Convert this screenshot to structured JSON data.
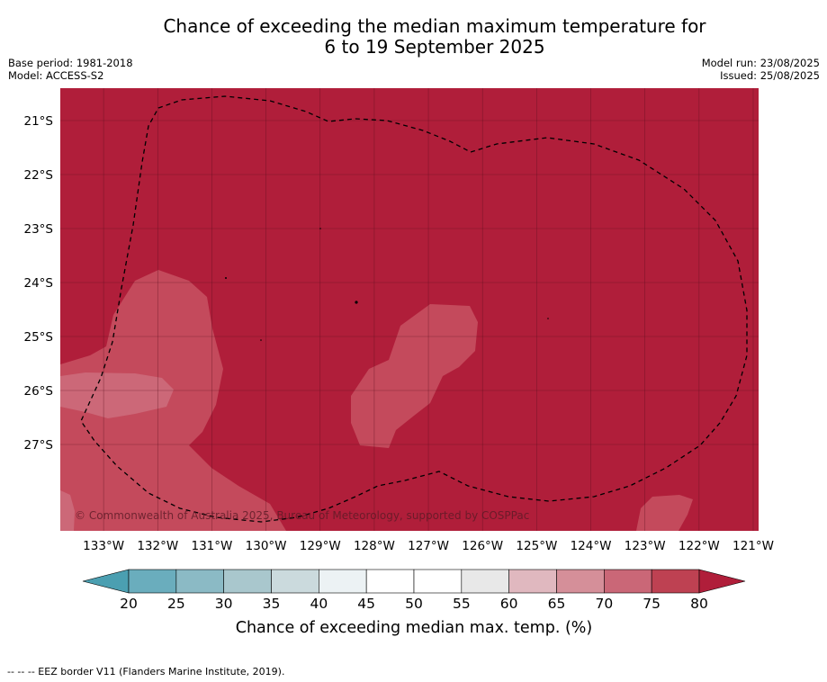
{
  "title": {
    "line1": "Chance of exceeding the median maximum temperature for",
    "line2": "6 to 19 September 2025"
  },
  "meta_left": {
    "base_period": "Base period: 1981-2018",
    "model": "Model: ACCESS-S2"
  },
  "meta_right": {
    "model_run": "Model run: 23/08/2025",
    "issued": "Issued: 25/08/2025"
  },
  "map": {
    "lat_labels": [
      "21°S",
      "22°S",
      "23°S",
      "24°S",
      "25°S",
      "26°S",
      "27°S"
    ],
    "lat_values": [
      -21,
      -22,
      -23,
      -24,
      -25,
      -26,
      -27
    ],
    "lon_labels": [
      "133°W",
      "132°W",
      "131°W",
      "130°W",
      "129°W",
      "128°W",
      "127°W",
      "126°W",
      "125°W",
      "124°W",
      "123°W",
      "122°W",
      "121°W"
    ],
    "lon_values": [
      -133,
      -132,
      -131,
      -130,
      -129,
      -128,
      -127,
      -126,
      -125,
      -124,
      -123,
      -122,
      -121
    ],
    "lon_range": [
      -133.8,
      -120.9
    ],
    "lat_range": [
      -28.6,
      -20.4
    ],
    "background_color": "#b01e3a",
    "copyright": "© Commonwealth of Australia 2025, Bureau of Meteorology, supported by COSPPac"
  },
  "colorbar": {
    "ticks": [
      "20",
      "25",
      "30",
      "35",
      "40",
      "45",
      "50",
      "55",
      "60",
      "65",
      "70",
      "75",
      "80"
    ],
    "colors": [
      "#6aadbd",
      "#8bbac5",
      "#a9c7cd",
      "#cbdadd",
      "#ecf2f4",
      "#ffffff",
      "#ffffff",
      "#e8e8e8",
      "#e0b8bf",
      "#d58f99",
      "#ca6777",
      "#be4152"
    ],
    "under_color": "#4b9fb1",
    "over_color": "#b01e3a",
    "label": "Chance of exceeding median max. temp. (%)"
  },
  "footnote": "--  --  -- EEZ border V11 (Flanders Marine Institute, 2019)."
}
